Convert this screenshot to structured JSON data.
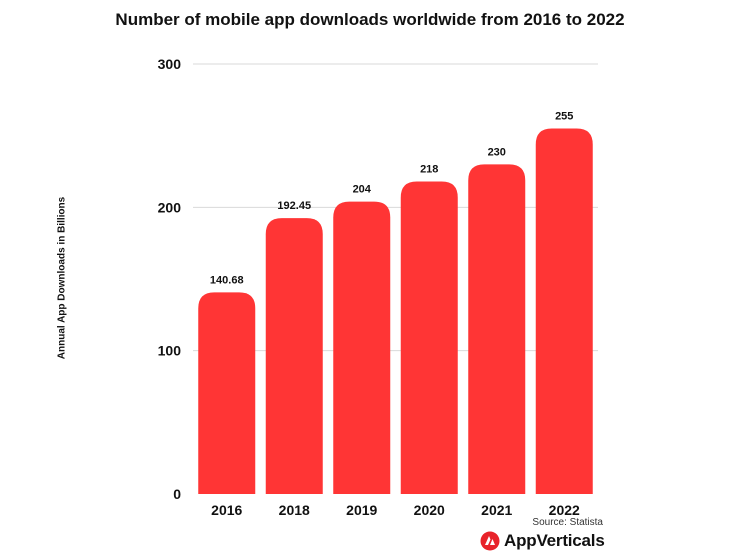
{
  "title": "Number of mobile app downloads worldwide from 2016 to 2022",
  "source": "Source: Statista",
  "brand": {
    "name": "AppVerticals",
    "icon": "appverticals-logo-icon"
  },
  "colors": {
    "bar": "#ff3535",
    "grid": "#d9d9d9",
    "text": "#111111"
  },
  "chart_data": {
    "type": "bar",
    "title": "Number of mobile app downloads worldwide from 2016 to 2022",
    "xlabel": "",
    "ylabel": "Annual App Downloads in Billions",
    "categories": [
      "2016",
      "2018",
      "2019",
      "2020",
      "2021",
      "2022"
    ],
    "values": [
      140.68,
      192.45,
      204,
      218,
      230,
      255
    ],
    "value_labels": [
      "140.68",
      "192.45",
      "204",
      "218",
      "230",
      "255"
    ],
    "ylim": [
      0,
      300
    ],
    "yticks": [
      0,
      100,
      200,
      300
    ],
    "grid": true,
    "legend": "none"
  }
}
